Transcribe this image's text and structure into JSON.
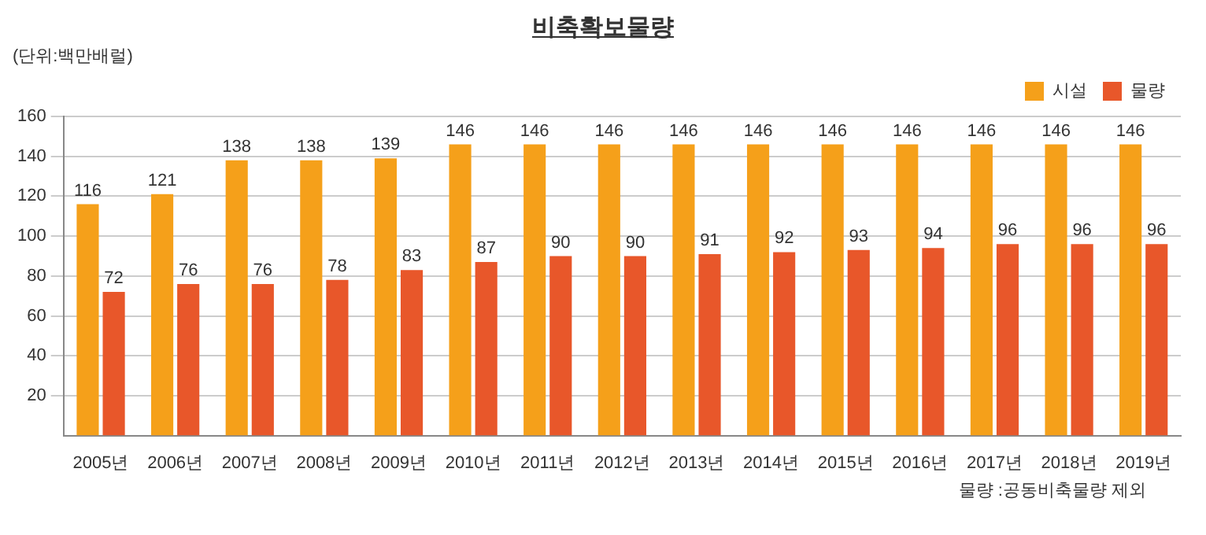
{
  "chart_data": {
    "type": "bar",
    "title": "비축확보물량",
    "ylabel": "(단위:백만배럴)",
    "categories": [
      "2005년",
      "2006년",
      "2007년",
      "2008년",
      "2009년",
      "2010년",
      "2011년",
      "2012년",
      "2013년",
      "2014년",
      "2015년",
      "2016년",
      "2017년",
      "2018년",
      "2019년"
    ],
    "series": [
      {
        "name": "시설",
        "color": "#f5a01a",
        "values": [
          116,
          121,
          138,
          138,
          139,
          146,
          146,
          146,
          146,
          146,
          146,
          146,
          146,
          146,
          146
        ]
      },
      {
        "name": "물량",
        "color": "#e8572a",
        "values": [
          72,
          76,
          76,
          78,
          83,
          87,
          90,
          90,
          91,
          92,
          93,
          94,
          96,
          96,
          96
        ]
      }
    ],
    "ylim": [
      0,
      160
    ],
    "yticks": [
      20,
      40,
      60,
      80,
      100,
      120,
      140,
      160
    ],
    "grid": "y",
    "legend": "top right",
    "data_labels": true,
    "annotations": [
      "물량 :공동비축물량 제외"
    ]
  }
}
